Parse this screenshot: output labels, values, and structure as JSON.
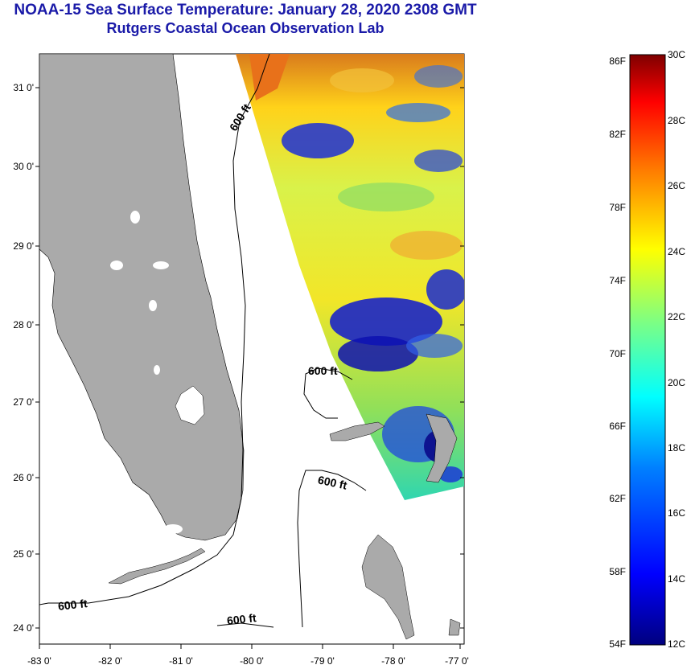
{
  "title": "NOAA-15 Sea Surface Temperature:  January 28, 2020 2308 GMT",
  "subtitle": "Rutgers Coastal Ocean Observation Lab",
  "map": {
    "lat_ticks": [
      "31 0'",
      "30 0'",
      "29 0'",
      "28 0'",
      "27 0'",
      "26 0'",
      "25 0'",
      "24 0'"
    ],
    "lon_ticks": [
      "-83 0'",
      "-82 0'",
      "-81 0'",
      "-80 0'",
      "-79 0'",
      "-78 0'",
      "-77 0'"
    ],
    "isobath_labels": [
      "600 ft",
      "600 ft",
      "600 ft",
      "600 ft",
      "600 ft"
    ],
    "colors": {
      "land": "#aaaaaa",
      "water": "#ffffff",
      "isobath": "#000000"
    }
  },
  "colorbar": {
    "fahrenheit_labels": [
      "86F",
      "82F",
      "78F",
      "74F",
      "70F",
      "66F",
      "62F",
      "58F",
      "54F"
    ],
    "celsius_labels": [
      "30C",
      "28C",
      "26C",
      "24C",
      "22C",
      "20C",
      "18C",
      "16C",
      "14C",
      "12C"
    ],
    "colors": [
      "#00007f",
      "#0000ff",
      "#0080ff",
      "#00ffff",
      "#80ff80",
      "#ffff00",
      "#ff8000",
      "#ff0000",
      "#7f0000"
    ]
  }
}
